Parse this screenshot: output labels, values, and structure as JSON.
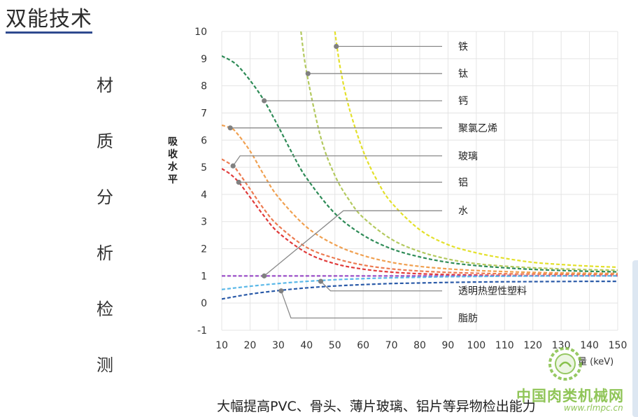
{
  "page": {
    "title": "双能技术",
    "side_chars": [
      "材",
      "质",
      "分",
      "析",
      "检",
      "测"
    ],
    "caption": "大幅提高PVC、骨头、薄片玻璃、铝片等异物检出能力"
  },
  "watermark": {
    "text": "中国肉类机械网",
    "url": "www.rlmpc.cn"
  },
  "chart_data": {
    "type": "line",
    "ylabel": "吸收水平",
    "xlabel_visible": "量 (keV)",
    "xlim": [
      10,
      150
    ],
    "ylim": [
      -1,
      10
    ],
    "x_ticks": [
      10,
      20,
      30,
      40,
      50,
      60,
      70,
      80,
      90,
      100,
      110,
      120,
      130,
      140,
      150
    ],
    "y_ticks": [
      -1,
      0,
      1,
      2,
      3,
      4,
      5,
      6,
      7,
      8,
      9,
      10
    ],
    "grid": true,
    "line_style": "dashed",
    "series": [
      {
        "name": "铁",
        "color": "#e3e02a",
        "x": [
          50,
          52,
          55,
          60,
          65,
          70,
          80,
          90,
          100,
          110,
          120,
          130,
          140,
          150
        ],
        "y": [
          10,
          8.6,
          7.2,
          5.6,
          4.5,
          3.7,
          2.7,
          2.15,
          1.85,
          1.65,
          1.5,
          1.42,
          1.36,
          1.32
        ],
        "marker": {
          "x": 50.5,
          "y": 9.45
        },
        "label_y": 9.45
      },
      {
        "name": "钛",
        "color": "#b3c95e",
        "x": [
          38,
          40,
          45,
          50,
          55,
          60,
          70,
          80,
          90,
          100,
          110,
          120,
          130,
          140,
          150
        ],
        "y": [
          10,
          8.5,
          6.1,
          4.7,
          3.8,
          3.15,
          2.35,
          1.9,
          1.62,
          1.45,
          1.36,
          1.3,
          1.26,
          1.23,
          1.21
        ],
        "marker": {
          "x": 40.5,
          "y": 8.45
        },
        "label_y": 8.45
      },
      {
        "name": "钙",
        "color": "#2e8b57",
        "x": [
          10,
          15,
          20,
          25,
          30,
          35,
          40,
          50,
          60,
          70,
          80,
          90,
          100,
          110,
          120,
          130,
          140,
          150
        ],
        "y": [
          9.1,
          8.8,
          8.2,
          7.45,
          6.5,
          5.5,
          4.6,
          3.3,
          2.5,
          2.0,
          1.7,
          1.5,
          1.38,
          1.3,
          1.24,
          1.2,
          1.17,
          1.15
        ],
        "marker": {
          "x": 25,
          "y": 7.45
        },
        "label_y": 7.45
      },
      {
        "name": "聚氯乙烯",
        "color": "#f0a050",
        "x": [
          10,
          13,
          15,
          20,
          25,
          30,
          40,
          50,
          60,
          70,
          80,
          90,
          100,
          110,
          120,
          130,
          140,
          150
        ],
        "y": [
          6.55,
          6.45,
          6.3,
          5.6,
          4.7,
          3.9,
          2.8,
          2.15,
          1.75,
          1.5,
          1.35,
          1.26,
          1.2,
          1.16,
          1.13,
          1.11,
          1.1,
          1.09
        ],
        "marker": {
          "x": 13,
          "y": 6.45
        },
        "label_y": 6.45
      },
      {
        "name": "玻璃",
        "color": "#ec7a50",
        "x": [
          10,
          14,
          16,
          20,
          25,
          30,
          40,
          50,
          60,
          70,
          80,
          90,
          100,
          110,
          120,
          130,
          140,
          150
        ],
        "y": [
          5.3,
          5.05,
          4.8,
          4.2,
          3.45,
          2.85,
          2.05,
          1.65,
          1.4,
          1.26,
          1.18,
          1.13,
          1.1,
          1.08,
          1.07,
          1.06,
          1.05,
          1.05
        ],
        "marker": {
          "x": 14,
          "y": 5.05
        },
        "label_y": 5.42
      },
      {
        "name": "铝",
        "color": "#e03a3a",
        "x": [
          10,
          13,
          16,
          20,
          25,
          30,
          40,
          50,
          60,
          70,
          80,
          90,
          100,
          110,
          120,
          130,
          140,
          150
        ],
        "y": [
          4.95,
          4.75,
          4.45,
          3.9,
          3.2,
          2.6,
          1.85,
          1.45,
          1.25,
          1.14,
          1.08,
          1.05,
          1.03,
          1.02,
          1.01,
          1.01,
          1.0,
          1.0
        ],
        "marker": {
          "x": 16,
          "y": 4.45
        },
        "label_y": 4.45
      },
      {
        "name": "水",
        "color": "#9b4fc8",
        "x": [
          10,
          150
        ],
        "y": [
          1.0,
          1.0
        ],
        "marker": {
          "x": 25,
          "y": 1.0
        },
        "label_y": 3.4
      },
      {
        "name": "透明热塑性塑料",
        "color": "#5ab8e8",
        "x": [
          10,
          20,
          30,
          40,
          50,
          60,
          70,
          80,
          90,
          100,
          110,
          120,
          130,
          140,
          150
        ],
        "y": [
          0.5,
          0.62,
          0.72,
          0.8,
          0.86,
          0.9,
          0.93,
          0.95,
          0.97,
          0.98,
          0.99,
          0.995,
          1.0,
          1.0,
          1.0
        ],
        "marker": {
          "x": 45,
          "y": 0.8
        },
        "label_y": 0.45
      },
      {
        "name": "脂肪",
        "color": "#2a5aa8",
        "x": [
          10,
          20,
          30,
          40,
          50,
          60,
          70,
          80,
          90,
          100,
          110,
          120,
          130,
          140,
          150
        ],
        "y": [
          0.15,
          0.33,
          0.46,
          0.56,
          0.63,
          0.68,
          0.72,
          0.74,
          0.76,
          0.775,
          0.785,
          0.79,
          0.795,
          0.8,
          0.8
        ],
        "marker": {
          "x": 31,
          "y": 0.45
        },
        "label_y": -0.55
      }
    ]
  }
}
